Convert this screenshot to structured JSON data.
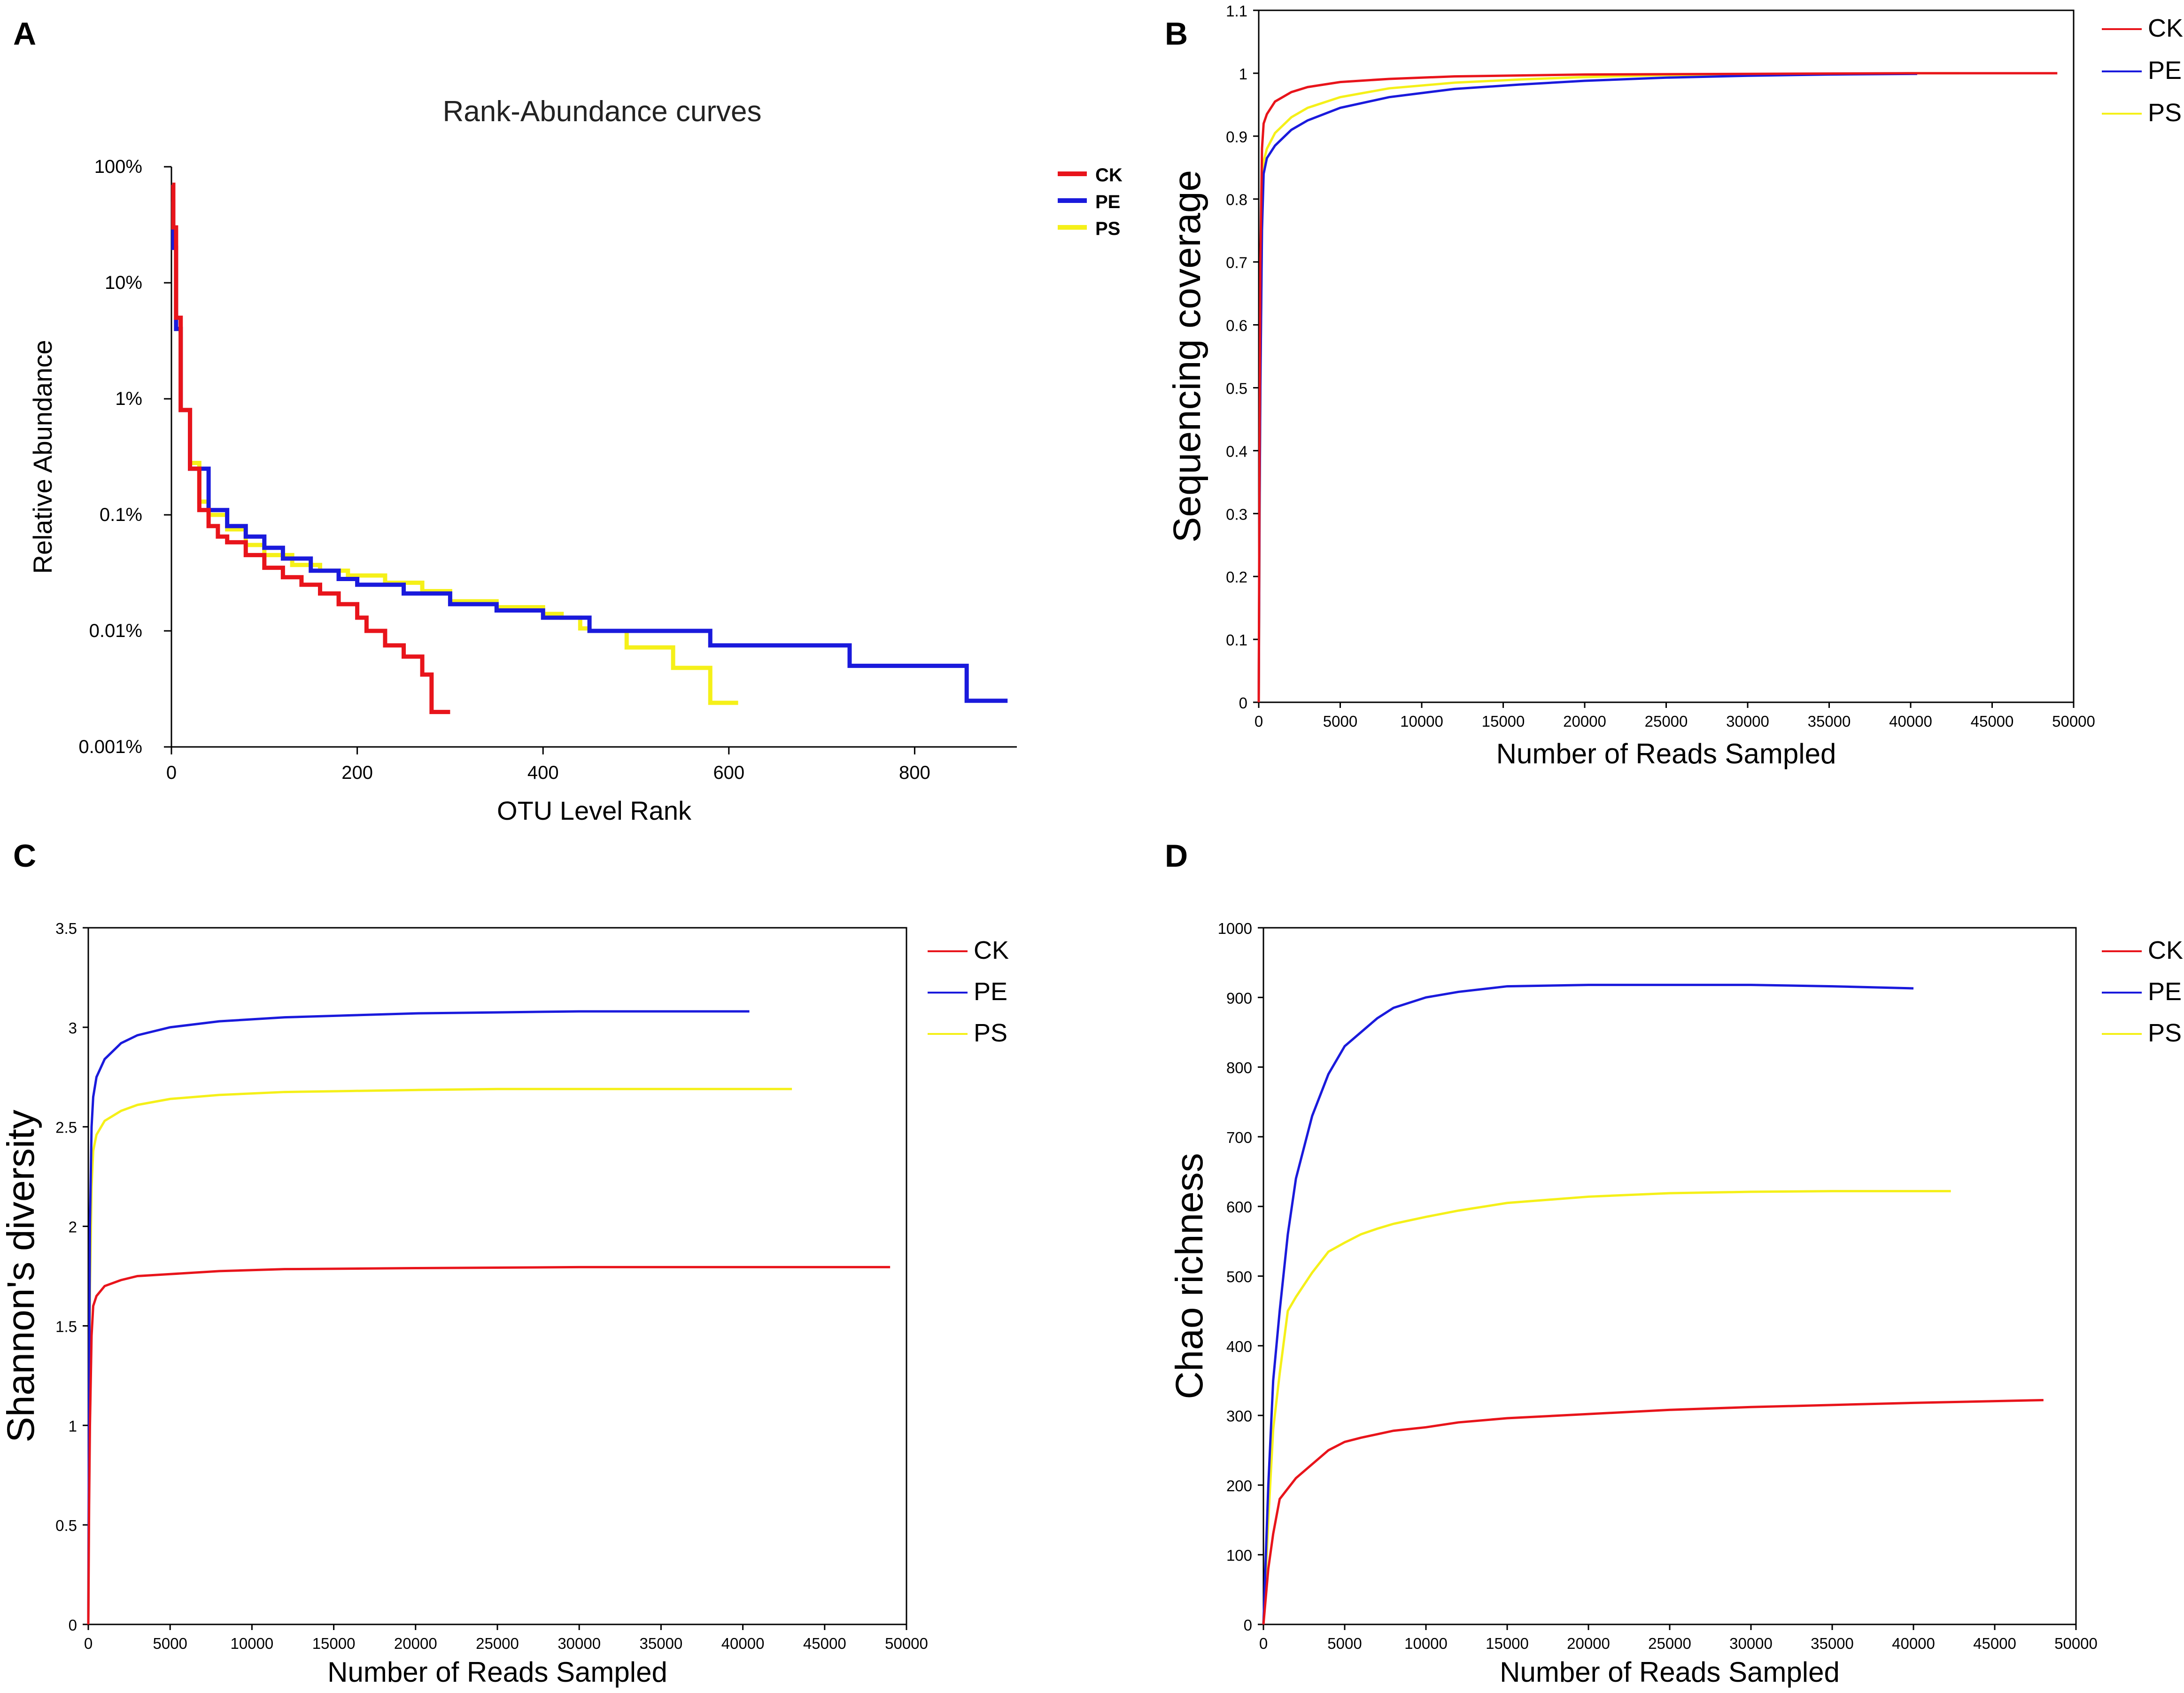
{
  "chart_data": [
    {
      "panel": "A",
      "type": "line",
      "title": "Rank-Abundance curves",
      "xlabel": "OTU Level Rank",
      "ylabel": "Relative Abundance",
      "xlim": [
        0,
        910
      ],
      "x_ticks": [
        0,
        200,
        400,
        600,
        800
      ],
      "yscale": "log",
      "ylim": [
        1e-05,
        1
      ],
      "y_ticks": [
        1e-05,
        0.0001,
        0.001,
        0.01,
        0.1,
        1
      ],
      "y_tick_labels": [
        "0.001%",
        "0.01%",
        "0.1%",
        "1%",
        "10%",
        "100%"
      ],
      "legend_position": "top-right",
      "series": [
        {
          "name": "CK",
          "color": "#e8141b",
          "step": true,
          "x": [
            1,
            2,
            5,
            10,
            20,
            30,
            40,
            50,
            60,
            80,
            100,
            120,
            140,
            160,
            180,
            200,
            210,
            220,
            230,
            250,
            270,
            280,
            300
          ],
          "y": [
            0.7,
            0.3,
            0.05,
            0.008,
            0.0025,
            0.0011,
            0.0008,
            0.00065,
            0.00058,
            0.00045,
            0.00035,
            0.00029,
            0.00025,
            0.00021,
            0.00017,
            0.00013,
            0.0001,
            0.0001,
            7.5e-05,
            6e-05,
            4.2e-05,
            2e-05,
            2e-05
          ]
        },
        {
          "name": "PE",
          "color": "#1a1adc",
          "step": true,
          "x": [
            1,
            2,
            5,
            10,
            20,
            40,
            60,
            80,
            100,
            120,
            150,
            180,
            200,
            250,
            300,
            350,
            400,
            450,
            500,
            550,
            580,
            650,
            700,
            730,
            800,
            856,
            900
          ],
          "y": [
            0.5,
            0.2,
            0.04,
            0.008,
            0.0025,
            0.0011,
            0.0008,
            0.00065,
            0.00052,
            0.00042,
            0.00033,
            0.00028,
            0.00025,
            0.00021,
            0.00017,
            0.00015,
            0.00013,
            0.0001,
            0.0001,
            0.0001,
            7.5e-05,
            7.5e-05,
            7.5e-05,
            5e-05,
            5e-05,
            2.5e-05,
            2.5e-05
          ]
        },
        {
          "name": "PS",
          "color": "#f5f019",
          "step": true,
          "x": [
            1,
            2,
            5,
            10,
            20,
            30,
            40,
            60,
            80,
            100,
            130,
            160,
            190,
            230,
            270,
            300,
            350,
            400,
            420,
            440,
            450,
            490,
            540,
            580,
            610
          ],
          "y": [
            0.5,
            0.2,
            0.04,
            0.008,
            0.0028,
            0.0013,
            0.001,
            0.00075,
            0.00055,
            0.00045,
            0.00037,
            0.00033,
            0.0003,
            0.00026,
            0.00022,
            0.00018,
            0.00016,
            0.00014,
            0.00013,
            0.000105,
            0.0001,
            7.2e-05,
            4.8e-05,
            2.4e-05,
            2.4e-05
          ]
        }
      ]
    },
    {
      "panel": "B",
      "type": "line",
      "xlabel": "Number of Reads Sampled",
      "ylabel": "Sequencing coverage",
      "xlim": [
        0,
        50000
      ],
      "ylim": [
        0,
        1.1
      ],
      "x_ticks": [
        0,
        5000,
        10000,
        15000,
        20000,
        25000,
        30000,
        35000,
        40000,
        45000,
        50000
      ],
      "y_ticks": [
        0,
        0.1,
        0.2,
        0.3,
        0.4,
        0.5,
        0.6,
        0.7,
        0.8,
        0.9,
        1,
        1.1
      ],
      "legend_position": "right",
      "series": [
        {
          "name": "CK",
          "color": "#e8141b",
          "x": [
            0,
            50,
            100,
            200,
            300,
            500,
            1000,
            2000,
            3000,
            5000,
            8000,
            12000,
            20000,
            30000,
            40000,
            49000
          ],
          "y": [
            0,
            0.4,
            0.7,
            0.88,
            0.92,
            0.935,
            0.955,
            0.97,
            0.978,
            0.986,
            0.991,
            0.995,
            0.998,
            0.999,
            1.0,
            1.0
          ]
        },
        {
          "name": "PE",
          "color": "#1a1adc",
          "x": [
            0,
            50,
            100,
            200,
            300,
            500,
            1000,
            2000,
            3000,
            5000,
            8000,
            12000,
            16000,
            20000,
            25000,
            30000,
            35000,
            40400
          ],
          "y": [
            0,
            0.3,
            0.5,
            0.75,
            0.84,
            0.865,
            0.885,
            0.91,
            0.925,
            0.945,
            0.962,
            0.975,
            0.982,
            0.988,
            0.993,
            0.996,
            0.998,
            0.999
          ]
        },
        {
          "name": "PS",
          "color": "#f5f019",
          "x": [
            0,
            50,
            100,
            200,
            300,
            500,
            1000,
            2000,
            3000,
            5000,
            8000,
            12000,
            16000,
            20000,
            25000,
            30000,
            35000,
            40000,
            43000
          ],
          "y": [
            0,
            0.3,
            0.5,
            0.76,
            0.86,
            0.88,
            0.905,
            0.93,
            0.945,
            0.962,
            0.976,
            0.985,
            0.99,
            0.994,
            0.997,
            0.998,
            0.999,
            1.0,
            1.0
          ]
        }
      ]
    },
    {
      "panel": "C",
      "type": "line",
      "xlabel": "Number of Reads Sampled",
      "ylabel": "Shannon's diversity",
      "xlim": [
        0,
        50000
      ],
      "ylim": [
        0,
        3.5
      ],
      "x_ticks": [
        0,
        5000,
        10000,
        15000,
        20000,
        25000,
        30000,
        35000,
        40000,
        45000,
        50000
      ],
      "y_ticks": [
        0,
        0.5,
        1,
        1.5,
        2,
        2.5,
        3,
        3.5
      ],
      "legend_position": "right",
      "series": [
        {
          "name": "CK",
          "color": "#e8141b",
          "x": [
            0,
            50,
            100,
            200,
            300,
            500,
            1000,
            2000,
            3000,
            5000,
            8000,
            12000,
            20000,
            30000,
            40000,
            49000
          ],
          "y": [
            0,
            0.6,
            1.0,
            1.45,
            1.6,
            1.65,
            1.7,
            1.73,
            1.75,
            1.76,
            1.775,
            1.785,
            1.79,
            1.795,
            1.795,
            1.795
          ]
        },
        {
          "name": "PE",
          "color": "#1a1adc",
          "x": [
            0,
            50,
            100,
            200,
            300,
            500,
            1000,
            2000,
            3000,
            5000,
            8000,
            12000,
            16000,
            20000,
            25000,
            30000,
            35000,
            40400
          ],
          "y": [
            0,
            1.2,
            2.0,
            2.5,
            2.65,
            2.75,
            2.84,
            2.92,
            2.96,
            3.0,
            3.03,
            3.05,
            3.06,
            3.07,
            3.075,
            3.08,
            3.08,
            3.08
          ]
        },
        {
          "name": "PS",
          "color": "#f5f019",
          "x": [
            0,
            50,
            100,
            200,
            300,
            500,
            1000,
            2000,
            3000,
            5000,
            8000,
            12000,
            16000,
            20000,
            25000,
            30000,
            35000,
            40000,
            43000
          ],
          "y": [
            0,
            1.0,
            1.7,
            2.2,
            2.38,
            2.46,
            2.53,
            2.58,
            2.61,
            2.64,
            2.66,
            2.675,
            2.68,
            2.685,
            2.69,
            2.69,
            2.69,
            2.69,
            2.69
          ]
        }
      ]
    },
    {
      "panel": "D",
      "type": "line",
      "xlabel": "Number of Reads Sampled",
      "ylabel": "Chao richness",
      "xlim": [
        0,
        50000
      ],
      "ylim": [
        0,
        1000
      ],
      "x_ticks": [
        0,
        5000,
        10000,
        15000,
        20000,
        25000,
        30000,
        35000,
        40000,
        45000,
        50000
      ],
      "y_ticks": [
        0,
        100,
        200,
        300,
        400,
        500,
        600,
        700,
        800,
        900,
        1000
      ],
      "legend_position": "right",
      "series": [
        {
          "name": "CK",
          "color": "#e8141b",
          "x": [
            0,
            300,
            600,
            1000,
            2000,
            3000,
            4000,
            5000,
            6000,
            8000,
            10000,
            12000,
            15000,
            20000,
            25000,
            30000,
            35000,
            40000,
            48000
          ],
          "y": [
            0,
            80,
            130,
            180,
            210,
            230,
            250,
            262,
            268,
            278,
            283,
            290,
            296,
            302,
            308,
            312,
            315,
            318,
            322
          ]
        },
        {
          "name": "PE",
          "color": "#1a1adc",
          "x": [
            0,
            300,
            600,
            1000,
            1500,
            2000,
            3000,
            4000,
            5000,
            6000,
            7000,
            8000,
            10000,
            12000,
            15000,
            20000,
            25000,
            30000,
            35000,
            40000
          ],
          "y": [
            0,
            200,
            350,
            450,
            560,
            640,
            730,
            790,
            830,
            850,
            870,
            885,
            900,
            908,
            916,
            918,
            918,
            918,
            916,
            913
          ]
        },
        {
          "name": "PS",
          "color": "#f5f019",
          "x": [
            0,
            300,
            600,
            1000,
            1500,
            2000,
            3000,
            4000,
            5000,
            6000,
            7000,
            8000,
            10000,
            12000,
            15000,
            20000,
            25000,
            30000,
            35000,
            40000,
            42300
          ],
          "y": [
            0,
            150,
            280,
            360,
            450,
            470,
            505,
            535,
            548,
            560,
            568,
            575,
            585,
            594,
            605,
            614,
            619,
            621,
            622,
            622,
            622
          ]
        }
      ]
    }
  ]
}
